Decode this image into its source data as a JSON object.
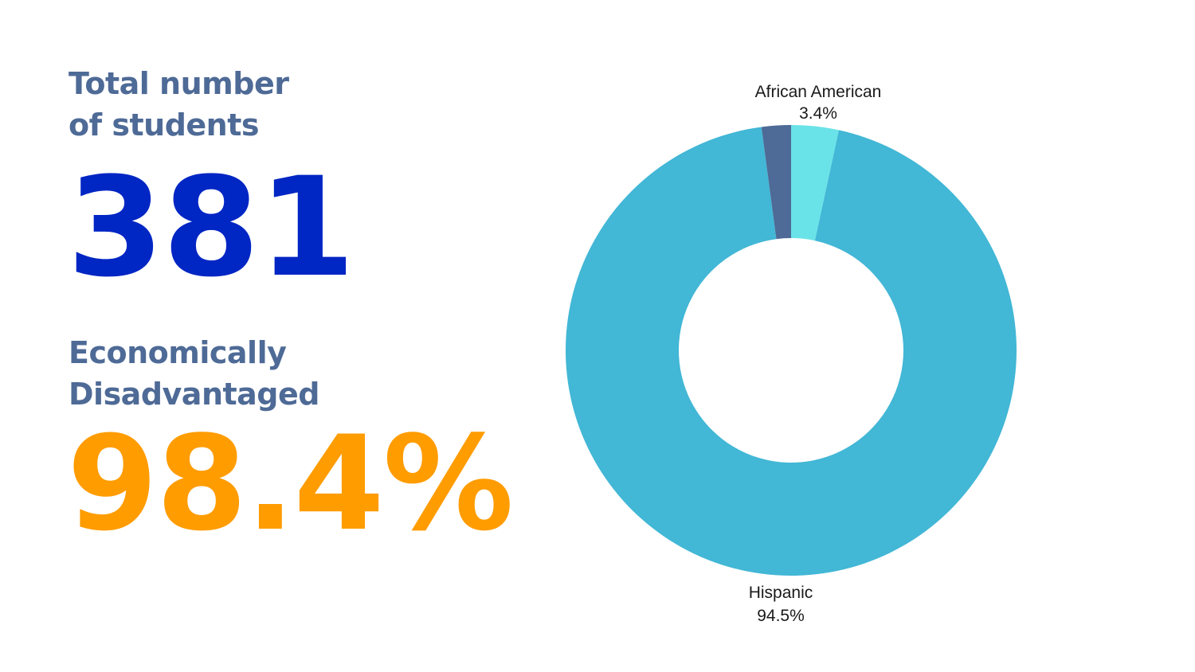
{
  "stats": {
    "total_label_line1": "Total number",
    "total_label_line2": "of students",
    "total_value": "381",
    "econ_label_line1": "Economically",
    "econ_label_line2": "Disadvantaged",
    "econ_value": "98.4%"
  },
  "chart_data": {
    "type": "pie",
    "donut": true,
    "slices": [
      {
        "name": "African American",
        "value": 3.4,
        "value_label": "3.4%",
        "color": "#6ae3e8",
        "label_visible": true
      },
      {
        "name": "Hispanic",
        "value": 94.5,
        "value_label": "94.5%",
        "color": "#42b7d6",
        "label_visible": true
      },
      {
        "name": "",
        "value": 2.1,
        "value_label": "",
        "color": "#4e6a96",
        "label_visible": false
      }
    ],
    "legend": "none"
  }
}
